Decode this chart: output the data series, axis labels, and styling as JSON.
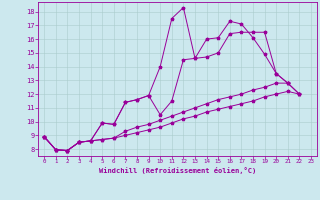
{
  "xlabel": "Windchill (Refroidissement éolien,°C)",
  "bg_color": "#cce8ee",
  "line_color": "#990099",
  "grid_color": "#aacccc",
  "xlim": [
    -0.5,
    23.5
  ],
  "ylim": [
    7.5,
    18.7
  ],
  "xticks": [
    0,
    1,
    2,
    3,
    4,
    5,
    6,
    7,
    8,
    9,
    10,
    11,
    12,
    13,
    14,
    15,
    16,
    17,
    18,
    19,
    20,
    21,
    22,
    23
  ],
  "yticks": [
    8,
    9,
    10,
    11,
    12,
    13,
    14,
    15,
    16,
    17,
    18
  ],
  "lines": [
    {
      "x": [
        0,
        1,
        2,
        3,
        4,
        5,
        6,
        7,
        8,
        9,
        10,
        11,
        12,
        13,
        14,
        15,
        16,
        17,
        18,
        19,
        20,
        21
      ],
      "y": [
        8.9,
        7.95,
        7.9,
        8.5,
        8.6,
        9.9,
        9.8,
        11.4,
        11.6,
        11.9,
        14.0,
        17.5,
        18.3,
        14.6,
        16.0,
        16.1,
        17.3,
        17.1,
        16.1,
        14.9,
        13.5,
        12.8
      ]
    },
    {
      "x": [
        0,
        1,
        2,
        3,
        4,
        5,
        6,
        7,
        8,
        9,
        10,
        11,
        12,
        13,
        14,
        15,
        16,
        17,
        18,
        19,
        20,
        21,
        22
      ],
      "y": [
        8.9,
        7.95,
        7.9,
        8.5,
        8.6,
        9.9,
        9.8,
        11.4,
        11.6,
        11.9,
        10.5,
        11.5,
        14.5,
        14.6,
        14.7,
        15.0,
        16.4,
        16.5,
        16.5,
        16.5,
        13.5,
        12.8,
        12.0
      ]
    },
    {
      "x": [
        0,
        1,
        2,
        3,
        4,
        5,
        6,
        7,
        8,
        9,
        10,
        11,
        12,
        13,
        14,
        15,
        16,
        17,
        18,
        19,
        20,
        21,
        22
      ],
      "y": [
        8.9,
        7.95,
        7.9,
        8.5,
        8.6,
        8.7,
        8.8,
        9.3,
        9.6,
        9.8,
        10.1,
        10.4,
        10.7,
        11.0,
        11.3,
        11.6,
        11.8,
        12.0,
        12.3,
        12.5,
        12.8,
        12.8,
        12.0
      ]
    },
    {
      "x": [
        0,
        1,
        2,
        3,
        4,
        5,
        6,
        7,
        8,
        9,
        10,
        11,
        12,
        13,
        14,
        15,
        16,
        17,
        18,
        19,
        20,
        21,
        22
      ],
      "y": [
        8.9,
        7.95,
        7.9,
        8.5,
        8.6,
        8.7,
        8.8,
        9.0,
        9.2,
        9.4,
        9.6,
        9.9,
        10.2,
        10.4,
        10.7,
        10.9,
        11.1,
        11.3,
        11.5,
        11.8,
        12.0,
        12.2,
        12.0
      ]
    }
  ]
}
